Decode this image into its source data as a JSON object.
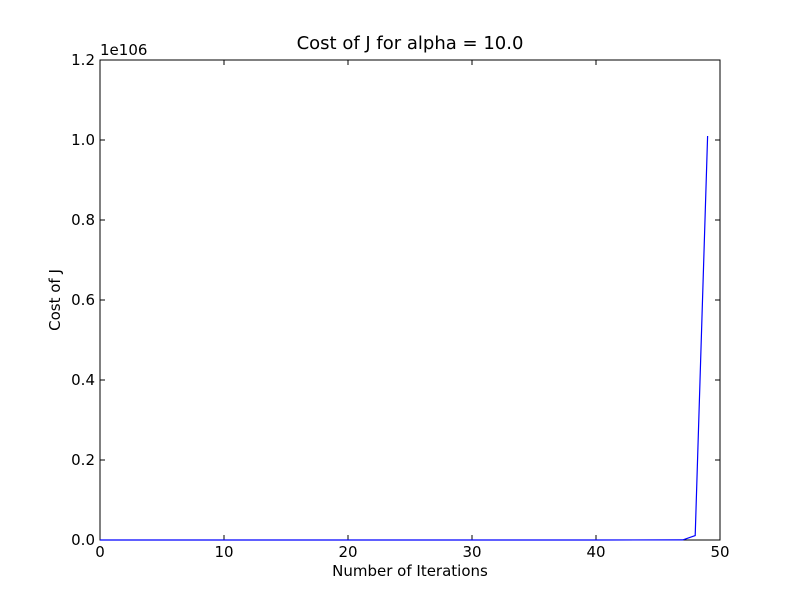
{
  "chart_data": {
    "type": "line",
    "title": "Cost of J for alpha = 10.0",
    "xlabel": "Number of Iterations",
    "ylabel": "Cost of J",
    "y_offset_label": "1e106",
    "xlim": [
      0,
      50
    ],
    "ylim": [
      0,
      1.2
    ],
    "x_ticks": [
      0,
      10,
      20,
      30,
      40,
      50
    ],
    "y_ticks": [
      0.0,
      0.2,
      0.4,
      0.6,
      0.8,
      1.0,
      1.2
    ],
    "x_tick_labels": [
      "0",
      "10",
      "20",
      "30",
      "40",
      "50"
    ],
    "y_tick_labels": [
      "0.0",
      "0.2",
      "0.4",
      "0.6",
      "0.8",
      "1.0",
      "1.2"
    ],
    "grid": false,
    "series": [
      {
        "color": "#0000ff",
        "x": [
          0,
          10,
          20,
          30,
          40,
          47,
          48,
          49
        ],
        "y": [
          0,
          0,
          0,
          0,
          0,
          0.0003,
          0.011,
          1.01
        ]
      }
    ]
  }
}
